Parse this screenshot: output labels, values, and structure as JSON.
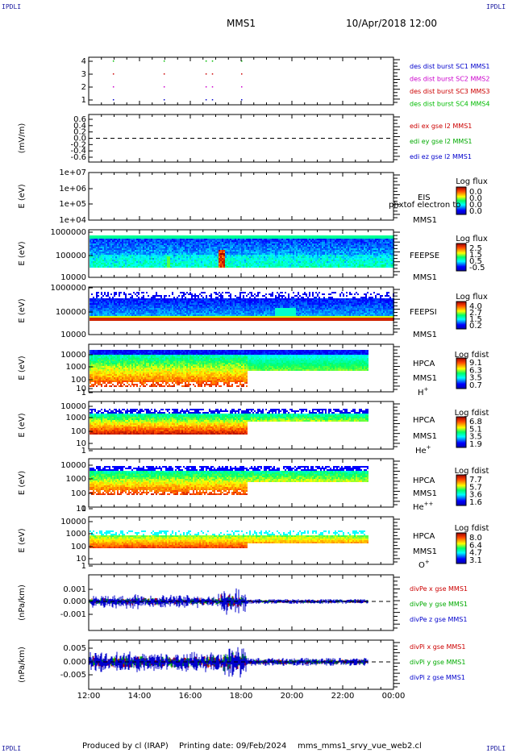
{
  "header": {
    "corner_left": "IPDLI",
    "corner_right": "IPDLI",
    "mission": "MMS1",
    "datetime": "10/Apr/2018 12:00"
  },
  "footer": {
    "produced_by": "Produced by cl (IRAP)",
    "printing_date": "Printing date: 09/Feb/2024",
    "filename": "mms_mms1_srvy_vue_web2.cl",
    "corner_left": "IPDLI",
    "corner_right": "IPDLI"
  },
  "chart_data": {
    "type": "heatmap",
    "time_axis": {
      "ticks": [
        "12:00",
        "14:00",
        "16:00",
        "18:00",
        "20:00",
        "22:00",
        "00:00"
      ],
      "range_hours": [
        12,
        24
      ]
    },
    "panels": [
      {
        "id": "burst",
        "type": "scatter",
        "ylabel": "",
        "yticks": [
          "4",
          "3",
          "2",
          "1"
        ],
        "legend": [
          {
            "text": "des dist burst SC1 MMS1",
            "color": "#0000cc"
          },
          {
            "text": "des dist burst SC2 MMS2",
            "color": "#cc00cc"
          },
          {
            "text": "des dist burst SC3 MMS3",
            "color": "#cc0000"
          },
          {
            "text": "des dist burst SC4 MMS4",
            "color": "#00bb00"
          }
        ],
        "burst_times_h": [
          12.95,
          14.95,
          16.6,
          16.85,
          18.0
        ]
      },
      {
        "id": "edi",
        "type": "line",
        "ylabel": "(mV/m)",
        "yticks": [
          "0.6",
          "0.4",
          "0.2",
          "0.0",
          "-0.2",
          "-0.4",
          "-0.6"
        ],
        "ylim": [
          -0.6,
          0.6
        ],
        "legend": [
          {
            "text": "edi ex gse l2 MMS1",
            "color": "#cc0000"
          },
          {
            "text": "edi ey gse l2 MMS1",
            "color": "#00aa00"
          },
          {
            "text": "edi ez gse l2 MMS1",
            "color": "#0000cc"
          }
        ]
      },
      {
        "id": "eis",
        "type": "heatmap",
        "ylabel": "E (eV)",
        "yticks": [
          "1e+07",
          "1e+06",
          "1e+05",
          "1e+04"
        ],
        "label1": "EIS",
        "label1b": "phxtof electron to",
        "label2": "MMS1",
        "cbar_title": "Log flux",
        "cbar_ticks": [
          "0.0",
          "0.0",
          "0.0",
          "0.0"
        ]
      },
      {
        "id": "feepse",
        "type": "heatmap",
        "ylabel": "E (eV)",
        "yticks": [
          "1000000",
          "100000",
          "10000"
        ],
        "label1": "FEEPSE",
        "label2": "MMS1",
        "cbar_title": "Log flux",
        "cbar_ticks": [
          "2.5",
          "1.5",
          "0.5",
          "-0.5"
        ]
      },
      {
        "id": "feepsi",
        "type": "heatmap",
        "ylabel": "E (eV)",
        "yticks": [
          "1000000",
          "100000",
          "10000"
        ],
        "label1": "FEEPSI",
        "label2": "MMS1",
        "cbar_title": "Log flux",
        "cbar_ticks": [
          "4.0",
          "2.7",
          "1.5",
          "0.2"
        ]
      },
      {
        "id": "hpca_h",
        "type": "heatmap",
        "ylabel": "E (eV)",
        "yticks": [
          "10000",
          "1000",
          "100",
          "10",
          "1"
        ],
        "label1": "HPCA",
        "label2": "MMS1",
        "species": "H",
        "charge": "+",
        "cbar_title": "Log fdist",
        "cbar_ticks": [
          "9.1",
          "6.3",
          "3.5",
          "0.7"
        ]
      },
      {
        "id": "hpca_he",
        "type": "heatmap",
        "ylabel": "E (eV)",
        "yticks": [
          "10000",
          "1000",
          "100",
          "10",
          "1"
        ],
        "label1": "HPCA",
        "label2": "MMS1",
        "species": "He",
        "charge": "+",
        "cbar_title": "Log fdist",
        "cbar_ticks": [
          "6.8",
          "5.1",
          "3.5",
          "1.9"
        ]
      },
      {
        "id": "hpca_he2",
        "type": "heatmap",
        "ylabel": "E (eV)",
        "yticks": [
          "10000",
          "1000",
          "100",
          "10",
          "1"
        ],
        "label1": "HPCA",
        "label2": "MMS1",
        "species": "He",
        "charge": "++",
        "cbar_title": "Log fdist",
        "cbar_ticks": [
          "7.7",
          "5.7",
          "3.6",
          "1.6"
        ]
      },
      {
        "id": "hpca_o",
        "type": "heatmap",
        "ylabel": "E (eV)",
        "yticks": [
          "10000",
          "1000",
          "100",
          "10",
          "1"
        ],
        "label1": "HPCA",
        "label2": "MMS1",
        "species": "O",
        "charge": "+",
        "cbar_title": "Log fdist",
        "cbar_ticks": [
          "8.0",
          "6.4",
          "4.7",
          "3.1"
        ]
      },
      {
        "id": "divpe",
        "type": "line",
        "ylabel": "(nPa/km)",
        "yticks": [
          "0.001",
          "0.000",
          "-0.001"
        ],
        "ylim": [
          -0.002,
          0.002
        ],
        "legend": [
          {
            "text": "divPe x gse MMS1",
            "color": "#cc0000"
          },
          {
            "text": "divPe y gse MMS1",
            "color": "#00aa00"
          },
          {
            "text": "divPe z gse MMS1",
            "color": "#0000cc"
          }
        ]
      },
      {
        "id": "divpi",
        "type": "line",
        "ylabel": "(nPa/km)",
        "yticks": [
          "0.005",
          "0.000",
          "-0.005"
        ],
        "ylim": [
          -0.008,
          0.008
        ],
        "legend": [
          {
            "text": "divPi x gse MMS1",
            "color": "#cc0000"
          },
          {
            "text": "divPi y gse MMS1",
            "color": "#00aa00"
          },
          {
            "text": "divPi z gse MMS1",
            "color": "#0000cc"
          }
        ]
      }
    ]
  }
}
